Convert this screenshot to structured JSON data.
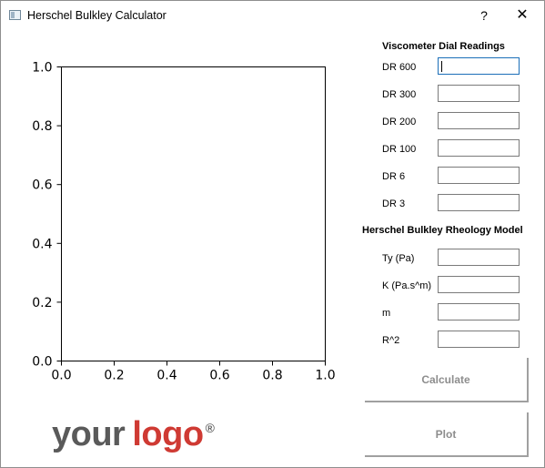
{
  "window": {
    "title": "Herschel Bulkley Calculator",
    "help_label": "?",
    "close_label": "✕",
    "icon": "app-window-icon"
  },
  "plot": {
    "x_ticks": [
      "0.0",
      "0.2",
      "0.4",
      "0.6",
      "0.8",
      "1.0"
    ],
    "y_ticks": [
      "0.0",
      "0.2",
      "0.4",
      "0.6",
      "0.8",
      "1.0"
    ]
  },
  "chart_data": {
    "type": "line",
    "series": [],
    "xlim": [
      0,
      1
    ],
    "ylim": [
      0,
      1
    ],
    "x_ticks": [
      "0.0",
      "0.2",
      "0.4",
      "0.6",
      "0.8",
      "1.0"
    ],
    "y_ticks": [
      "0.0",
      "0.2",
      "0.4",
      "0.6",
      "0.8",
      "1.0"
    ],
    "grid": false
  },
  "viscometer": {
    "title": "Viscometer Dial Readings",
    "fields": [
      {
        "label": "DR 600",
        "value": ""
      },
      {
        "label": "DR 300",
        "value": ""
      },
      {
        "label": "DR 200",
        "value": ""
      },
      {
        "label": "DR 100",
        "value": ""
      },
      {
        "label": "DR 6",
        "value": ""
      },
      {
        "label": "DR 3",
        "value": ""
      }
    ]
  },
  "model": {
    "title": "Herschel Bulkley Rheology Model",
    "fields": [
      {
        "label": "Ty (Pa)",
        "value": ""
      },
      {
        "label": "K (Pa.s^m)",
        "value": ""
      },
      {
        "label": "m",
        "value": ""
      },
      {
        "label": "R^2",
        "value": ""
      }
    ]
  },
  "buttons": {
    "calculate": "Calculate",
    "plot": "Plot"
  },
  "logo": {
    "word1": "your",
    "word2": "logo",
    "mark": "®"
  },
  "colors": {
    "logo_gray": "#5a5a5a",
    "logo_red": "#cf3a33",
    "focus_border": "#1b6fb8",
    "disabled_text": "#8d8d8d"
  }
}
